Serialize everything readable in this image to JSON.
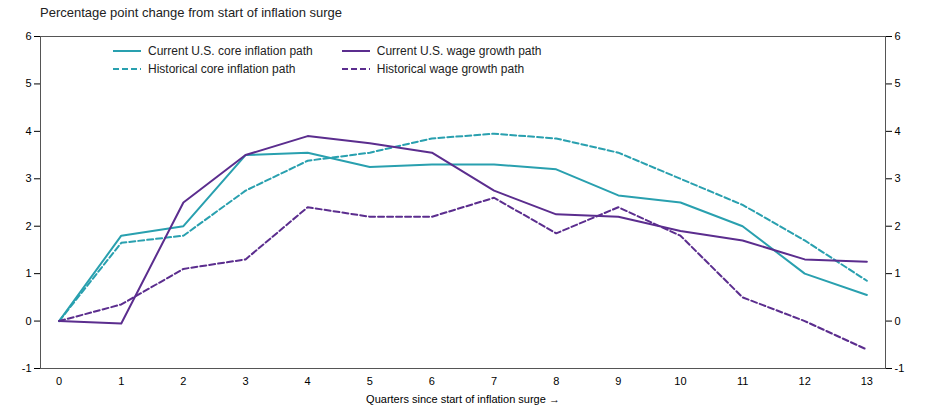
{
  "chart_data": {
    "type": "line",
    "title": "Percentage point change from start of inflation surge",
    "xlabel": "Quarters since start of inflation surge",
    "x": [
      0,
      1,
      2,
      3,
      4,
      5,
      6,
      7,
      8,
      9,
      10,
      11,
      12,
      13
    ],
    "xlim": [
      -0.3,
      13.3
    ],
    "xticks": [
      0,
      1,
      2,
      3,
      4,
      5,
      6,
      7,
      8,
      9,
      10,
      11,
      12,
      13
    ],
    "ylim": [
      -1,
      6
    ],
    "yticks": [
      -1,
      0,
      1,
      2,
      3,
      4,
      5,
      6
    ],
    "y2lim": [
      -1,
      6
    ],
    "y2ticks": [
      -1,
      0,
      1,
      2,
      3,
      4,
      5,
      6
    ],
    "grid": false,
    "legend": "upper left",
    "series": [
      {
        "name": "Current U.S. core inflation path",
        "color": "#29A0AF",
        "line_style": "solid",
        "values": [
          0.0,
          1.8,
          2.0,
          3.5,
          3.55,
          3.25,
          3.3,
          3.3,
          3.2,
          2.65,
          2.5,
          2.0,
          1.0,
          0.55
        ]
      },
      {
        "name": "Historical core inflation path",
        "color": "#29A0AF",
        "line_style": "dashed",
        "values": [
          0.0,
          1.65,
          1.8,
          2.75,
          3.38,
          3.55,
          3.85,
          3.95,
          3.85,
          3.55,
          3.0,
          2.45,
          1.7,
          0.85
        ]
      },
      {
        "name": "Current U.S. wage growth path",
        "color": "#5B2D8E",
        "line_style": "solid",
        "values": [
          0.0,
          -0.05,
          2.5,
          3.5,
          3.9,
          3.75,
          3.55,
          2.75,
          2.25,
          2.2,
          1.9,
          1.7,
          1.3,
          1.25
        ]
      },
      {
        "name": "Historical wage growth path",
        "color": "#5B2D8E",
        "line_style": "dashed",
        "values": [
          0.0,
          0.35,
          1.1,
          1.3,
          2.4,
          2.2,
          2.2,
          2.6,
          1.85,
          2.4,
          1.8,
          0.5,
          0.0,
          -0.6
        ]
      }
    ]
  }
}
